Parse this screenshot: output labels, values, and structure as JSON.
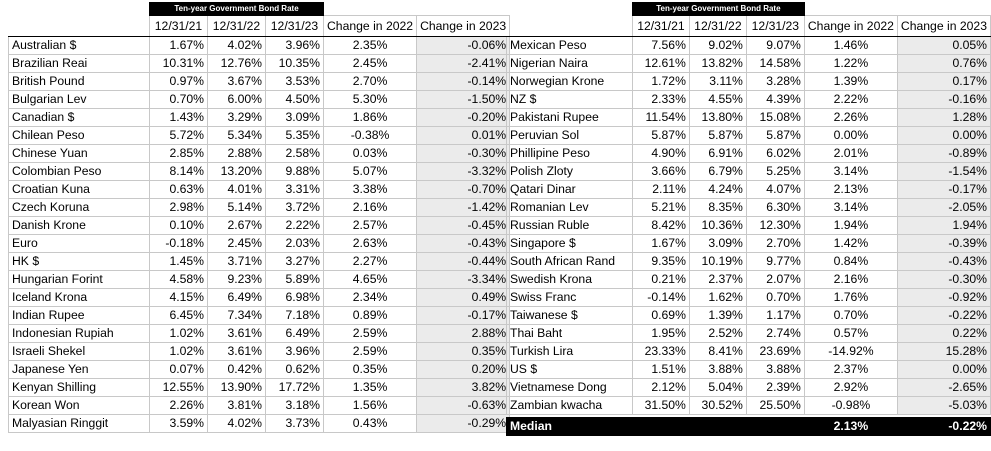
{
  "banner_title": "Ten-year Government Bond Rate",
  "columns": [
    "12/31/21",
    "12/31/22",
    "12/31/23",
    "Change in 2022",
    "Change in 2023"
  ],
  "left_rows": [
    [
      "Australian $",
      "1.67%",
      "4.02%",
      "3.96%",
      "2.35%",
      "-0.06%"
    ],
    [
      "Brazilian Reai",
      "10.31%",
      "12.76%",
      "10.35%",
      "2.45%",
      "-2.41%"
    ],
    [
      "British Pound",
      "0.97%",
      "3.67%",
      "3.53%",
      "2.70%",
      "-0.14%"
    ],
    [
      "Bulgarian Lev",
      "0.70%",
      "6.00%",
      "4.50%",
      "5.30%",
      "-1.50%"
    ],
    [
      "Canadian $",
      "1.43%",
      "3.29%",
      "3.09%",
      "1.86%",
      "-0.20%"
    ],
    [
      "Chilean Peso",
      "5.72%",
      "5.34%",
      "5.35%",
      "-0.38%",
      "0.01%"
    ],
    [
      "Chinese Yuan",
      "2.85%",
      "2.88%",
      "2.58%",
      "0.03%",
      "-0.30%"
    ],
    [
      "Colombian Peso",
      "8.14%",
      "13.20%",
      "9.88%",
      "5.07%",
      "-3.32%"
    ],
    [
      "Croatian Kuna",
      "0.63%",
      "4.01%",
      "3.31%",
      "3.38%",
      "-0.70%"
    ],
    [
      "Czech Koruna",
      "2.98%",
      "5.14%",
      "3.72%",
      "2.16%",
      "-1.42%"
    ],
    [
      "Danish Krone",
      "0.10%",
      "2.67%",
      "2.22%",
      "2.57%",
      "-0.45%"
    ],
    [
      "Euro",
      "-0.18%",
      "2.45%",
      "2.03%",
      "2.63%",
      "-0.43%"
    ],
    [
      "HK $",
      "1.45%",
      "3.71%",
      "3.27%",
      "2.27%",
      "-0.44%"
    ],
    [
      "Hungarian Forint",
      "4.58%",
      "9.23%",
      "5.89%",
      "4.65%",
      "-3.34%"
    ],
    [
      "Iceland Krona",
      "4.15%",
      "6.49%",
      "6.98%",
      "2.34%",
      "0.49%"
    ],
    [
      "Indian Rupee",
      "6.45%",
      "7.34%",
      "7.18%",
      "0.89%",
      "-0.17%"
    ],
    [
      "Indonesian Rupiah",
      "1.02%",
      "3.61%",
      "6.49%",
      "2.59%",
      "2.88%"
    ],
    [
      "Israeli Shekel",
      "1.02%",
      "3.61%",
      "3.96%",
      "2.59%",
      "0.35%"
    ],
    [
      "Japanese Yen",
      "0.07%",
      "0.42%",
      "0.62%",
      "0.35%",
      "0.20%"
    ],
    [
      "Kenyan Shilling",
      "12.55%",
      "13.90%",
      "17.72%",
      "1.35%",
      "3.82%"
    ],
    [
      "Korean Won",
      "2.26%",
      "3.81%",
      "3.18%",
      "1.56%",
      "-0.63%"
    ],
    [
      "Malyasian Ringgit",
      "3.59%",
      "4.02%",
      "3.73%",
      "0.43%",
      "-0.29%"
    ]
  ],
  "right_rows": [
    [
      "Mexican Peso",
      "7.56%",
      "9.02%",
      "9.07%",
      "1.46%",
      "0.05%"
    ],
    [
      "Nigerian Naira",
      "12.61%",
      "13.82%",
      "14.58%",
      "1.22%",
      "0.76%"
    ],
    [
      "Norwegian Krone",
      "1.72%",
      "3.11%",
      "3.28%",
      "1.39%",
      "0.17%"
    ],
    [
      "NZ $",
      "2.33%",
      "4.55%",
      "4.39%",
      "2.22%",
      "-0.16%"
    ],
    [
      "Pakistani Rupee",
      "11.54%",
      "13.80%",
      "15.08%",
      "2.26%",
      "1.28%"
    ],
    [
      "Peruvian Sol",
      "5.87%",
      "5.87%",
      "5.87%",
      "0.00%",
      "0.00%"
    ],
    [
      "Phillipine Peso",
      "4.90%",
      "6.91%",
      "6.02%",
      "2.01%",
      "-0.89%"
    ],
    [
      "Polish Zloty",
      "3.66%",
      "6.79%",
      "5.25%",
      "3.14%",
      "-1.54%"
    ],
    [
      "Qatari Dinar",
      "2.11%",
      "4.24%",
      "4.07%",
      "2.13%",
      "-0.17%"
    ],
    [
      "Romanian Lev",
      "5.21%",
      "8.35%",
      "6.30%",
      "3.14%",
      "-2.05%"
    ],
    [
      "Russian Ruble",
      "8.42%",
      "10.36%",
      "12.30%",
      "1.94%",
      "1.94%"
    ],
    [
      "Singapore $",
      "1.67%",
      "3.09%",
      "2.70%",
      "1.42%",
      "-0.39%"
    ],
    [
      "South African Rand",
      "9.35%",
      "10.19%",
      "9.77%",
      "0.84%",
      "-0.43%"
    ],
    [
      "Swedish Krona",
      "0.21%",
      "2.37%",
      "2.07%",
      "2.16%",
      "-0.30%"
    ],
    [
      "Swiss Franc",
      "-0.14%",
      "1.62%",
      "0.70%",
      "1.76%",
      "-0.92%"
    ],
    [
      "Taiwanese $",
      "0.69%",
      "1.39%",
      "1.17%",
      "0.70%",
      "-0.22%"
    ],
    [
      "Thai Baht",
      "1.95%",
      "2.52%",
      "2.74%",
      "0.57%",
      "0.22%"
    ],
    [
      "Turkish Lira",
      "23.33%",
      "8.41%",
      "23.69%",
      "-14.92%",
      "15.28%"
    ],
    [
      "US $",
      "1.51%",
      "3.88%",
      "3.88%",
      "2.37%",
      "0.00%"
    ],
    [
      "Vietnamese Dong",
      "2.12%",
      "5.04%",
      "2.39%",
      "2.92%",
      "-2.65%"
    ],
    [
      "Zambian kwacha",
      "31.50%",
      "30.52%",
      "25.50%",
      "-0.98%",
      "-5.03%"
    ]
  ],
  "median": {
    "label": "Median",
    "change_2022": "2.13%",
    "change_2023": "-0.22%"
  }
}
